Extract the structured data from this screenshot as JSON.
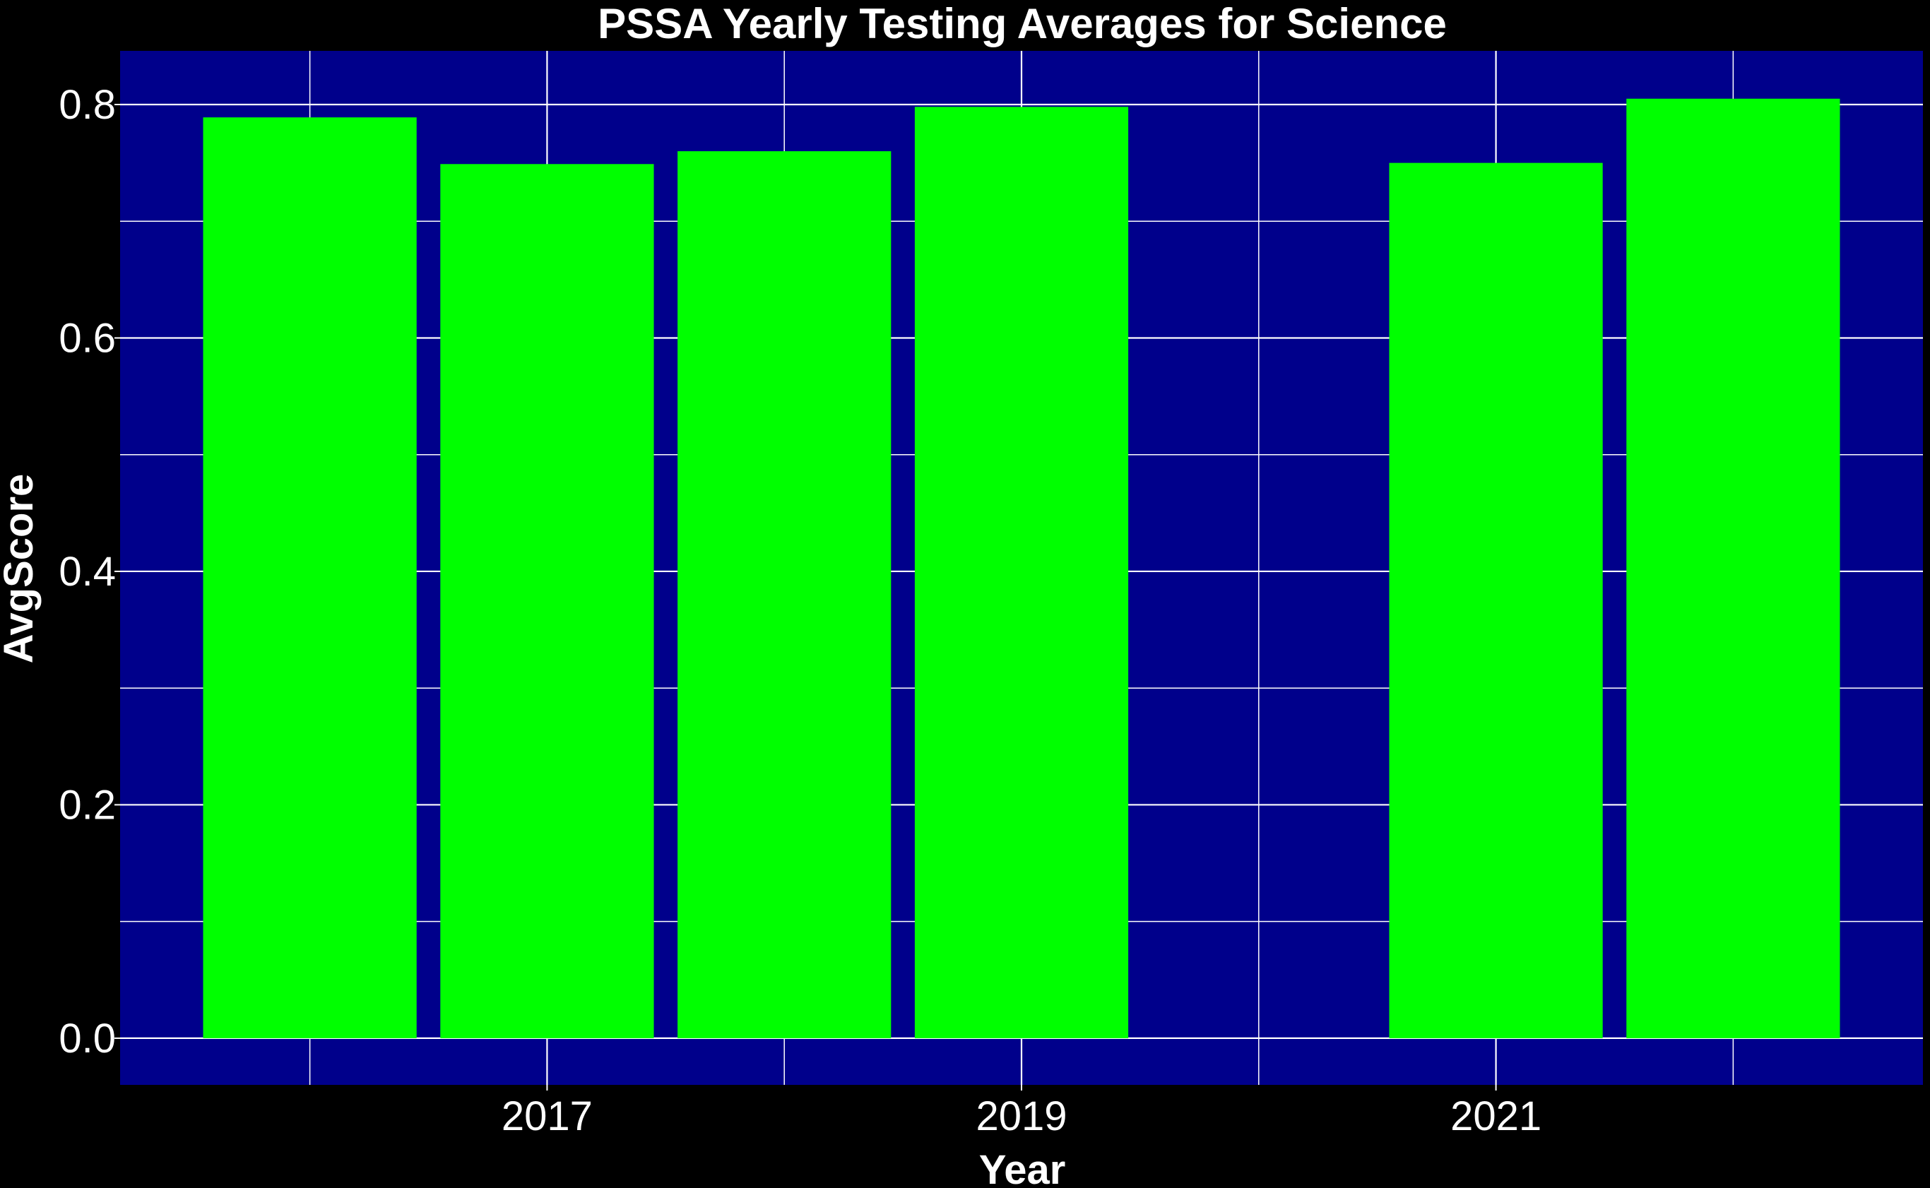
{
  "chart_data": {
    "type": "bar",
    "title": "PSSA Yearly Testing Averages for Science",
    "xlabel": "Year",
    "ylabel": "AvgScore",
    "x": [
      2016,
      2017,
      2018,
      2019,
      2021,
      2022
    ],
    "values": [
      0.789,
      0.749,
      0.76,
      0.798,
      0.75,
      0.805
    ],
    "xlim": [
      2015.2,
      2022.8
    ],
    "ylim": [
      -0.04,
      0.846
    ],
    "x_ticks": [
      2017,
      2019,
      2021
    ],
    "x_tick_labels": [
      "2017",
      "2019",
      "2021"
    ],
    "y_ticks": [
      0.0,
      0.2,
      0.4,
      0.6,
      0.8
    ],
    "y_tick_labels": [
      "0.0",
      "0.2",
      "0.4",
      "0.6",
      "0.8"
    ],
    "bar_width": 0.9,
    "grid": true,
    "legend": "none",
    "colors": {
      "page_background": "#000000",
      "plot_background": "#00008b",
      "bar": "#00ff00",
      "grid": "#ffffff",
      "text": "#ffffff"
    }
  }
}
